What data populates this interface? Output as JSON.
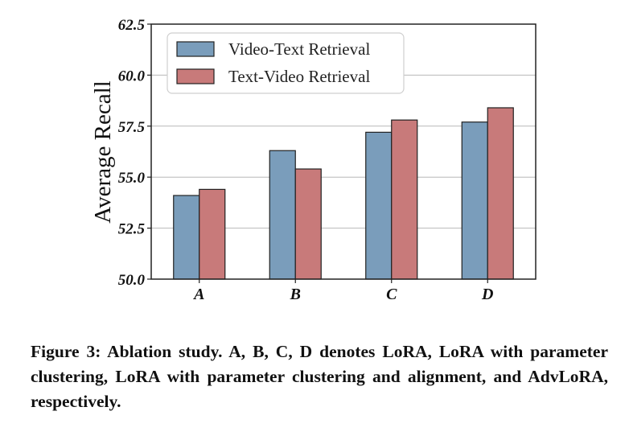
{
  "chart_data": {
    "type": "bar",
    "categories": [
      "A",
      "B",
      "C",
      "D"
    ],
    "series": [
      {
        "name": "Video-Text Retrieval",
        "color": "#7a9dbb",
        "values": [
          54.1,
          56.3,
          57.2,
          57.7
        ]
      },
      {
        "name": "Text-Video Retrieval",
        "color": "#c87a7a",
        "values": [
          54.4,
          55.4,
          57.8,
          58.4
        ]
      }
    ],
    "ylabel": "Average Recall",
    "xlabel": "",
    "ylim": [
      50.0,
      62.5
    ],
    "yticks": [
      "50.0",
      "52.5",
      "55.0",
      "57.5",
      "60.0",
      "62.5"
    ],
    "grid": true,
    "legend_position": "top-left"
  },
  "caption": "Figure 3: Ablation study. A, B, C, D denotes LoRA, LoRA with parameter clustering, LoRA with parameter clustering and alignment, and AdvLoRA, respectively."
}
